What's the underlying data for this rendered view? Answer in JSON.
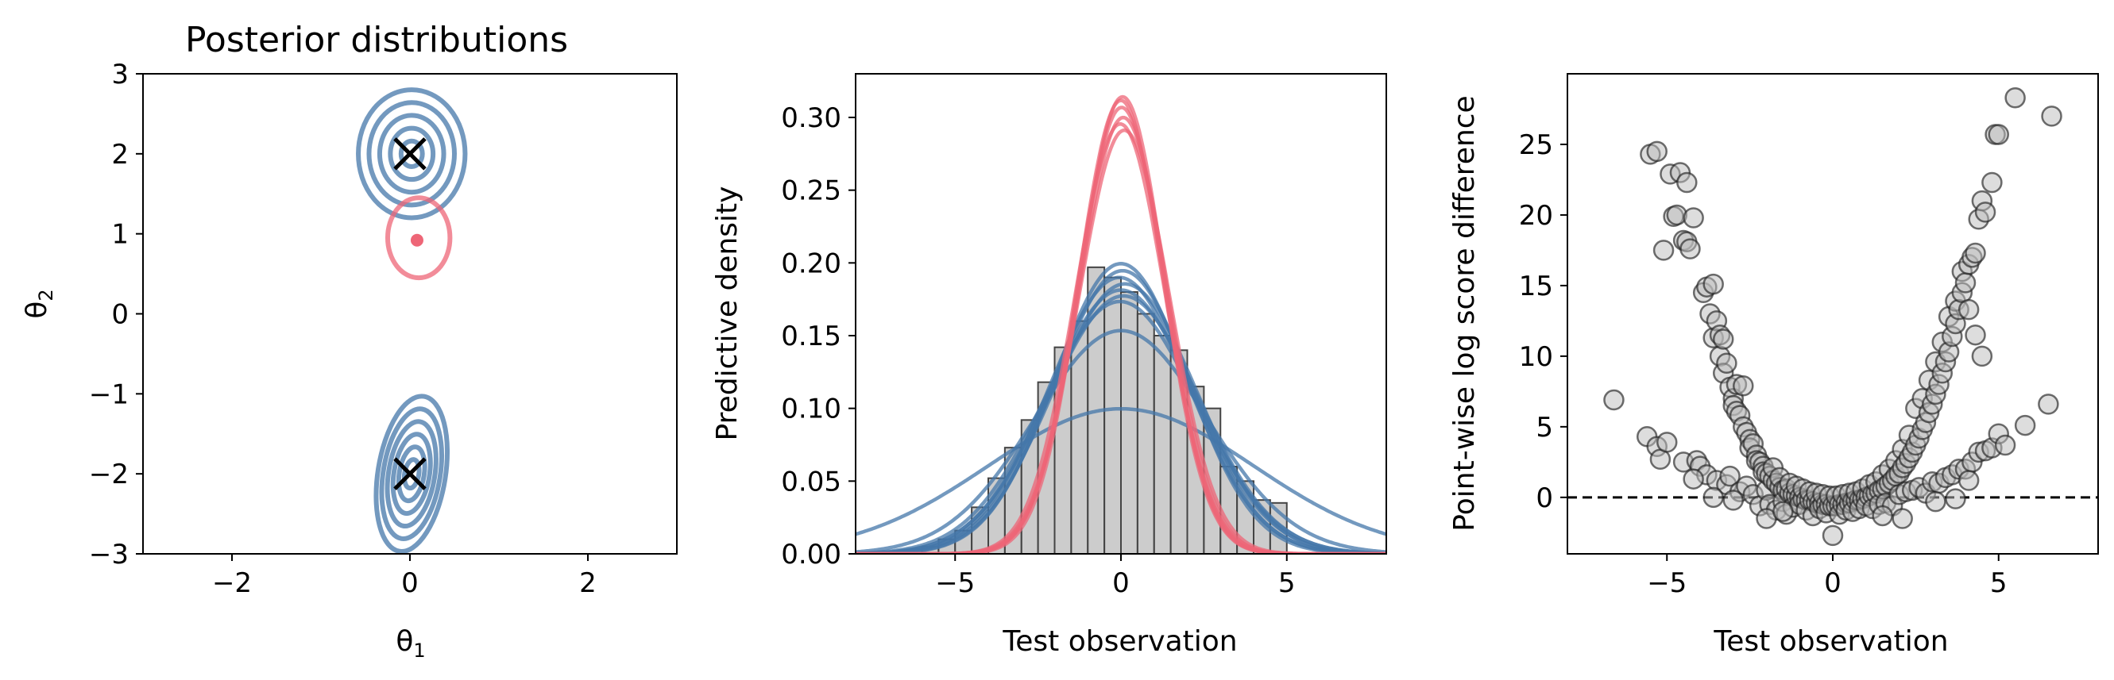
{
  "colors": {
    "blue": "#4477aa",
    "red": "#ee6677",
    "grey": "#bbbbbb",
    "black": "#000000"
  },
  "chart_data": [
    {
      "type": "contour",
      "title": "Posterior distributions",
      "xlabel": "θ1",
      "ylabel": "θ2",
      "xlim": [
        -3,
        3
      ],
      "ylim": [
        -3,
        3
      ],
      "xticks": [
        -2,
        0,
        2
      ],
      "yticks": [
        -3,
        -2,
        -1,
        0,
        1,
        2,
        3
      ],
      "markers": [
        {
          "x": 0,
          "y": 2,
          "symbol": "x"
        },
        {
          "x": 0,
          "y": -2,
          "symbol": "x"
        }
      ],
      "series": [
        {
          "name": "blue upper mode",
          "color": "blue",
          "center": [
            0.02,
            2.0
          ],
          "radius_x": [
            0.6,
            0.48,
            0.36,
            0.24,
            0.12
          ],
          "radius_y": [
            0.8,
            0.64,
            0.48,
            0.32,
            0.16
          ]
        },
        {
          "name": "blue lower mode",
          "color": "blue",
          "center": [
            0.02,
            -2.0
          ],
          "radius_x": [
            0.38,
            0.32,
            0.26,
            0.2,
            0.14,
            0.08
          ],
          "radius_y": [
            0.98,
            0.82,
            0.66,
            0.5,
            0.34,
            0.18
          ],
          "tilt": 0.2
        },
        {
          "name": "red mode",
          "color": "red",
          "center": [
            0.1,
            0.95
          ],
          "radius_x": [
            0.35
          ],
          "radius_y": [
            0.5
          ],
          "dot": [
            0.08,
            0.92
          ]
        }
      ]
    },
    {
      "type": "histogram+line",
      "xlabel": "Test observation",
      "ylabel": "Predictive density",
      "xlim": [
        -8,
        8
      ],
      "ylim": [
        0,
        0.33
      ],
      "xticks": [
        -5,
        0,
        5
      ],
      "yticks": [
        0.0,
        0.05,
        0.1,
        0.15,
        0.2,
        0.25,
        0.3
      ],
      "histogram": {
        "bin_edges": [
          -6.0,
          -5.5,
          -5.0,
          -4.5,
          -4.0,
          -3.5,
          -3.0,
          -2.5,
          -2.0,
          -1.5,
          -1.0,
          -0.5,
          0.0,
          0.5,
          1.0,
          1.5,
          2.0,
          2.5,
          3.0,
          3.5,
          4.0,
          4.5,
          5.0
        ],
        "heights": [
          0.005,
          0.01,
          0.016,
          0.032,
          0.052,
          0.073,
          0.092,
          0.118,
          0.142,
          0.16,
          0.197,
          0.19,
          0.18,
          0.165,
          0.15,
          0.14,
          0.115,
          0.1,
          0.06,
          0.05,
          0.037,
          0.035
        ]
      },
      "series": [
        {
          "name": "red predictive",
          "color": "red",
          "count": 6,
          "mu": [
            0.0,
            0.02,
            0.05,
            0.07,
            -0.02,
            0.1
          ],
          "sigma": [
            1.28,
            1.3,
            1.27,
            1.33,
            1.35,
            1.37
          ]
        },
        {
          "name": "blue predictive",
          "color": "blue",
          "count": 7,
          "mu": [
            0.0,
            0.05,
            -0.05,
            0.12,
            0.0,
            0.08,
            -0.03
          ],
          "sigma": [
            2.0,
            2.05,
            2.1,
            2.15,
            2.2,
            2.25,
            2.3
          ]
        },
        {
          "name": "blue wide predictive",
          "color": "blue",
          "count": 2,
          "mu": [
            0.0,
            0.0
          ],
          "sigma": [
            4.0,
            2.6
          ]
        }
      ]
    },
    {
      "type": "scatter",
      "xlabel": "Test observation",
      "ylabel": "Point-wise log score difference",
      "xlim": [
        -8,
        8
      ],
      "ylim": [
        -4,
        30
      ],
      "xticks": [
        -5,
        0,
        5
      ],
      "yticks": [
        0,
        5,
        10,
        15,
        20,
        25
      ],
      "hline": {
        "y": 0,
        "style": "dashed"
      },
      "point_color": "grey",
      "points": [
        [
          -6.6,
          6.9
        ],
        [
          -5.6,
          4.3
        ],
        [
          -5.5,
          24.3
        ],
        [
          -5.3,
          24.5
        ],
        [
          -5.3,
          3.6
        ],
        [
          -5.2,
          2.7
        ],
        [
          -5.1,
          17.5
        ],
        [
          -5.0,
          3.9
        ],
        [
          -4.9,
          22.9
        ],
        [
          -4.8,
          19.9
        ],
        [
          -4.7,
          20.0
        ],
        [
          -4.6,
          23.0
        ],
        [
          -4.5,
          18.2
        ],
        [
          -4.5,
          2.5
        ],
        [
          -4.4,
          18.1
        ],
        [
          -4.4,
          22.3
        ],
        [
          -4.3,
          17.6
        ],
        [
          -4.2,
          19.8
        ],
        [
          -4.1,
          2.6
        ],
        [
          -4.0,
          2.2
        ],
        [
          -3.9,
          14.5
        ],
        [
          -3.8,
          14.9
        ],
        [
          -3.8,
          1.6
        ],
        [
          -3.7,
          13.0
        ],
        [
          -3.6,
          15.1
        ],
        [
          -3.6,
          11.3
        ],
        [
          -3.5,
          12.5
        ],
        [
          -3.5,
          1.2
        ],
        [
          -3.4,
          11.5
        ],
        [
          -3.4,
          10.0
        ],
        [
          -3.3,
          11.2
        ],
        [
          -3.3,
          8.8
        ],
        [
          -3.2,
          9.5
        ],
        [
          -3.2,
          0.9
        ],
        [
          -3.1,
          7.8
        ],
        [
          -3.1,
          1.5
        ],
        [
          -3.0,
          7.0
        ],
        [
          -3.0,
          6.5
        ],
        [
          -2.9,
          6.1
        ],
        [
          -2.9,
          8.0
        ],
        [
          -2.8,
          5.8
        ],
        [
          -2.8,
          0.4
        ],
        [
          -2.7,
          5.0
        ],
        [
          -2.7,
          7.9
        ],
        [
          -2.6,
          4.6
        ],
        [
          -2.6,
          0.8
        ],
        [
          -2.5,
          4.1
        ],
        [
          -2.5,
          3.5
        ],
        [
          -2.4,
          3.8
        ],
        [
          -2.4,
          0.2
        ],
        [
          -2.3,
          3.0
        ],
        [
          -2.3,
          2.6
        ],
        [
          -2.2,
          2.5
        ],
        [
          -2.2,
          -0.6
        ],
        [
          -2.1,
          2.2
        ],
        [
          -2.1,
          1.8
        ],
        [
          -2.0,
          1.7
        ],
        [
          -2.0,
          0.5
        ],
        [
          -1.9,
          1.5
        ],
        [
          -1.9,
          -0.5
        ],
        [
          -1.8,
          1.2
        ],
        [
          -1.8,
          2.1
        ],
        [
          -1.7,
          1.0
        ],
        [
          -1.7,
          -0.9
        ],
        [
          -1.6,
          0.7
        ],
        [
          -1.6,
          1.4
        ],
        [
          -1.5,
          0.5
        ],
        [
          -1.5,
          -0.3
        ],
        [
          -1.4,
          0.6
        ],
        [
          -1.4,
          -1.2
        ],
        [
          -1.3,
          0.3
        ],
        [
          -1.3,
          1.0
        ],
        [
          -1.2,
          0.2
        ],
        [
          -1.2,
          -0.7
        ],
        [
          -1.1,
          0.1
        ],
        [
          -1.1,
          0.8
        ],
        [
          -1.0,
          0.0
        ],
        [
          -1.0,
          -0.5
        ],
        [
          -0.9,
          -0.1
        ],
        [
          -0.9,
          0.6
        ],
        [
          -0.8,
          -0.2
        ],
        [
          -0.8,
          -0.9
        ],
        [
          -0.7,
          -0.2
        ],
        [
          -0.7,
          0.4
        ],
        [
          -0.6,
          -0.3
        ],
        [
          -0.6,
          -1.3
        ],
        [
          -0.5,
          -0.4
        ],
        [
          -0.5,
          0.3
        ],
        [
          -0.4,
          -0.4
        ],
        [
          -0.4,
          -0.8
        ],
        [
          -0.3,
          -0.5
        ],
        [
          -0.3,
          0.2
        ],
        [
          -0.2,
          -0.5
        ],
        [
          -0.2,
          -1.1
        ],
        [
          -0.1,
          -0.6
        ],
        [
          -0.1,
          0.1
        ],
        [
          0.0,
          -0.6
        ],
        [
          0.0,
          -2.7
        ],
        [
          0.1,
          -0.6
        ],
        [
          0.1,
          0.1
        ],
        [
          0.2,
          -0.5
        ],
        [
          0.2,
          -1.2
        ],
        [
          0.3,
          -0.5
        ],
        [
          0.3,
          0.2
        ],
        [
          0.4,
          -0.4
        ],
        [
          0.4,
          -0.9
        ],
        [
          0.5,
          -0.4
        ],
        [
          0.5,
          0.3
        ],
        [
          0.6,
          -0.3
        ],
        [
          0.6,
          -1.0
        ],
        [
          0.7,
          -0.2
        ],
        [
          0.7,
          0.4
        ],
        [
          0.8,
          -0.2
        ],
        [
          0.8,
          -0.8
        ],
        [
          0.9,
          -0.1
        ],
        [
          0.9,
          0.6
        ],
        [
          1.0,
          0.0
        ],
        [
          1.0,
          -0.6
        ],
        [
          1.1,
          0.1
        ],
        [
          1.1,
          0.9
        ],
        [
          1.2,
          0.2
        ],
        [
          1.2,
          -0.8
        ],
        [
          1.3,
          0.3
        ],
        [
          1.3,
          1.1
        ],
        [
          1.4,
          0.5
        ],
        [
          1.4,
          -0.5
        ],
        [
          1.5,
          0.6
        ],
        [
          1.5,
          1.6
        ],
        [
          1.6,
          0.8
        ],
        [
          1.6,
          -0.4
        ],
        [
          1.7,
          1.0
        ],
        [
          1.7,
          2.0
        ],
        [
          1.8,
          1.2
        ],
        [
          1.8,
          -0.6
        ],
        [
          1.9,
          1.5
        ],
        [
          1.9,
          2.6
        ],
        [
          2.0,
          1.7
        ],
        [
          2.0,
          0.2
        ],
        [
          2.1,
          2.1
        ],
        [
          2.1,
          3.4
        ],
        [
          2.2,
          2.4
        ],
        [
          2.2,
          0.4
        ],
        [
          2.3,
          2.8
        ],
        [
          2.3,
          4.4
        ],
        [
          2.4,
          3.2
        ],
        [
          2.4,
          0.5
        ],
        [
          2.5,
          3.7
        ],
        [
          2.5,
          6.3
        ],
        [
          2.6,
          4.2
        ],
        [
          2.6,
          0.7
        ],
        [
          2.7,
          4.8
        ],
        [
          2.7,
          7.0
        ],
        [
          2.8,
          5.3
        ],
        [
          2.8,
          0.3
        ],
        [
          2.9,
          6.0
        ],
        [
          2.9,
          8.3
        ],
        [
          3.0,
          6.6
        ],
        [
          3.0,
          1.1
        ],
        [
          3.1,
          7.3
        ],
        [
          3.1,
          9.6
        ],
        [
          3.2,
          8.0
        ],
        [
          3.2,
          1.0
        ],
        [
          3.3,
          8.8
        ],
        [
          3.3,
          11.0
        ],
        [
          3.4,
          9.6
        ],
        [
          3.4,
          1.4
        ],
        [
          3.5,
          10.3
        ],
        [
          3.5,
          12.8
        ],
        [
          3.6,
          11.4
        ],
        [
          3.6,
          1.6
        ],
        [
          3.7,
          12.3
        ],
        [
          3.7,
          13.9
        ],
        [
          3.8,
          13.3
        ],
        [
          3.8,
          2.0
        ],
        [
          3.9,
          14.5
        ],
        [
          3.9,
          16.0
        ],
        [
          4.0,
          15.2
        ],
        [
          4.0,
          2.0
        ],
        [
          4.1,
          16.5
        ],
        [
          4.1,
          13.3
        ],
        [
          4.2,
          17.0
        ],
        [
          4.2,
          2.5
        ],
        [
          4.3,
          17.3
        ],
        [
          4.3,
          11.5
        ],
        [
          4.4,
          19.7
        ],
        [
          4.4,
          3.2
        ],
        [
          4.5,
          21.0
        ],
        [
          4.5,
          10.0
        ],
        [
          4.6,
          20.2
        ],
        [
          4.6,
          3.3
        ],
        [
          4.8,
          22.3
        ],
        [
          4.8,
          3.5
        ],
        [
          4.9,
          25.7
        ],
        [
          5.0,
          25.7
        ],
        [
          5.0,
          4.5
        ],
        [
          5.2,
          3.7
        ],
        [
          5.5,
          28.3
        ],
        [
          5.8,
          5.1
        ],
        [
          6.5,
          6.6
        ],
        [
          6.6,
          27.0
        ],
        [
          -2.0,
          -1.5
        ],
        [
          -1.5,
          -1.0
        ],
        [
          1.5,
          -1.3
        ],
        [
          2.1,
          -1.5
        ],
        [
          -3.6,
          0.0
        ],
        [
          -3.0,
          -0.2
        ],
        [
          3.1,
          -0.3
        ],
        [
          3.7,
          -0.1
        ],
        [
          -4.2,
          1.3
        ],
        [
          4.1,
          1.2
        ]
      ]
    }
  ]
}
